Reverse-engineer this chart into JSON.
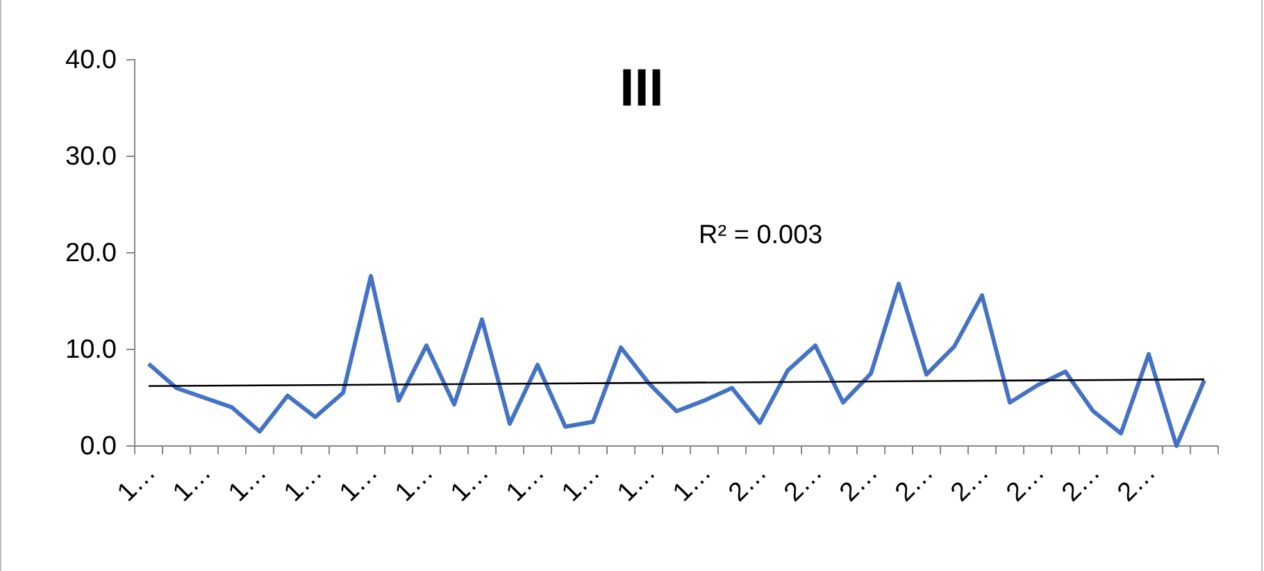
{
  "chart_data": {
    "type": "line",
    "title": "III",
    "categories": [
      "1…",
      null,
      "1…",
      null,
      "1…",
      null,
      "1…",
      null,
      "1…",
      null,
      "1…",
      null,
      "1…",
      null,
      "1…",
      null,
      "1…",
      null,
      "1…",
      null,
      "1…",
      null,
      "2…",
      null,
      "2…",
      null,
      "2…",
      null,
      "2…",
      null,
      "2…",
      null,
      "2…",
      null,
      "2…",
      null,
      "2…",
      null,
      null
    ],
    "series": [
      {
        "color": "#4472c4",
        "values": [
          8.5,
          6.0,
          5.0,
          4.0,
          1.5,
          5.2,
          3.0,
          5.5,
          17.6,
          4.7,
          10.4,
          4.3,
          13.1,
          2.3,
          8.4,
          2.0,
          2.5,
          10.2,
          6.5,
          3.6,
          4.7,
          6.0,
          2.4,
          7.8,
          10.4,
          4.5,
          7.5,
          16.8,
          7.4,
          10.3,
          15.6,
          4.5,
          6.3,
          7.7,
          3.6,
          1.3,
          9.5,
          0.0,
          6.8
        ]
      },
      {
        "color": "#000000",
        "values": [
          6.2,
          null,
          null,
          null,
          null,
          null,
          null,
          null,
          null,
          null,
          null,
          null,
          null,
          null,
          null,
          null,
          null,
          null,
          null,
          null,
          null,
          null,
          null,
          null,
          null,
          null,
          null,
          null,
          null,
          null,
          null,
          null,
          null,
          null,
          null,
          null,
          null,
          null,
          6.9
        ]
      }
    ],
    "ylim": [
      0,
      40
    ],
    "yticks": [
      {
        "value": 0,
        "label": "0.0"
      },
      {
        "value": 10,
        "label": "10.0"
      },
      {
        "value": 20,
        "label": "20.0"
      },
      {
        "value": 30,
        "label": "30.0"
      },
      {
        "value": 40,
        "label": "40.0"
      }
    ],
    "annotations": [
      "R² = 0.003"
    ],
    "grid": false
  }
}
